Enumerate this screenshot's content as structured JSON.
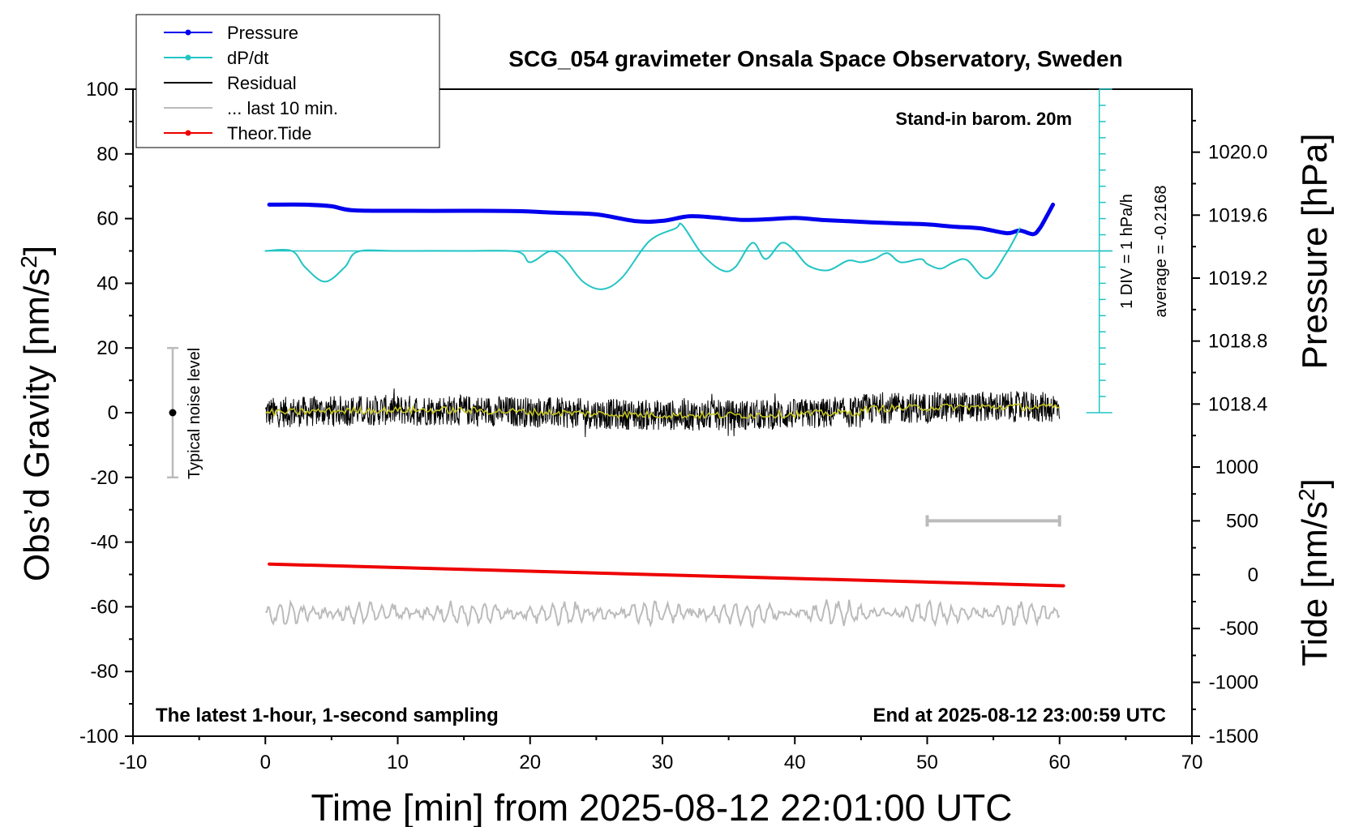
{
  "chart_data": {
    "type": "line",
    "title": "SCG_054 gravimeter Onsala Space Observatory, Sweden",
    "subtitle_right": "Stand-in barom. 20m",
    "footer_left": "The latest 1-hour, 1-second sampling",
    "footer_right": "End at 2025-08-12 23:00:59 UTC",
    "xlabel": "Time [min] from 2025-08-12 22:01:00 UTC",
    "ylabel_left_main": "Obs’d Gravity [nm/s",
    "ylabel_left_sup": "2",
    "ylabel_left_end": "]",
    "ylabel_right_pressure": "Pressure [hPa]",
    "ylabel_right_tide_main": "Tide [nm/s",
    "ylabel_right_tide_sup": "2",
    "ylabel_right_tide_end": "]",
    "xlim": [
      -10,
      70
    ],
    "ylim_left": [
      -100,
      100
    ],
    "x_ticks": [
      "-10",
      "0",
      "10",
      "20",
      "30",
      "40",
      "50",
      "60",
      "70"
    ],
    "y_ticks_left": [
      "-100",
      "-80",
      "-60",
      "-40",
      "-20",
      "0",
      "20",
      "40",
      "60",
      "80",
      "100"
    ],
    "pressure_ticks": [
      "1018.4",
      "1018.8",
      "1019.2",
      "1019.6",
      "1020.0"
    ],
    "pressure_range": [
      1018.0,
      1020.4
    ],
    "tide_ticks": [
      "-1500",
      "-1000",
      "-500",
      "0",
      "500",
      "1000"
    ],
    "tide_range": [
      -1500,
      1000
    ],
    "dpdt_scale_label": "1 DIV = 1 hPa/h",
    "dpdt_average_label": "average = -0.2168",
    "noise_label": "Typical noise level",
    "noise_range": [
      -20,
      20
    ],
    "legend": [
      {
        "label": "Pressure",
        "color": "#0000ee",
        "marker": true
      },
      {
        "label": "dP/dt",
        "color": "#22c4c4",
        "marker": true
      },
      {
        "label": "Residual",
        "color": "#000000",
        "marker": false
      },
      {
        "label": "... last 10 min.",
        "color": "#bbbbbb",
        "marker": false
      },
      {
        "label": "Theor.Tide",
        "color": "#ee0000",
        "marker": true
      }
    ],
    "series": [
      {
        "name": "Pressure",
        "color": "#0000ee",
        "x": [
          0.3,
          3,
          5,
          6.5,
          10,
          15,
          19,
          22,
          25,
          28,
          30,
          32,
          34,
          36,
          38,
          40,
          42,
          44,
          46,
          48,
          50,
          52,
          54,
          56,
          57,
          58,
          58.5,
          59,
          59.5
        ],
        "y": [
          64.3,
          64.3,
          63.8,
          62.6,
          62.4,
          62.4,
          62.3,
          61.8,
          61.3,
          59.2,
          59.3,
          60.7,
          60.3,
          59.6,
          59.8,
          60.2,
          59.6,
          59.2,
          58.8,
          58.5,
          58.2,
          57.5,
          57.0,
          55.5,
          56.3,
          55.2,
          57.0,
          60.5,
          64.3
        ]
      },
      {
        "name": "dP/dt",
        "color": "#22c4c4",
        "x": [
          0,
          2,
          3,
          4.5,
          6,
          7,
          10,
          15,
          19,
          20,
          21.5,
          22.5,
          24,
          25.5,
          27,
          29,
          31,
          31.5,
          33,
          34.5,
          35.5,
          36.8,
          37.8,
          39,
          40,
          41,
          42.5,
          44,
          45,
          46,
          47,
          48,
          49.5,
          50,
          51,
          52,
          53,
          54.5,
          56,
          57
        ],
        "y": [
          50,
          50,
          45,
          40.5,
          45,
          49.8,
          50,
          50,
          49.8,
          46.5,
          49.9,
          48,
          40.5,
          38.2,
          42,
          53,
          57,
          58,
          49,
          44,
          45,
          52.5,
          47.5,
          52.5,
          50,
          45.5,
          44,
          47,
          46.5,
          47.5,
          49.3,
          46.5,
          47.5,
          46,
          44.5,
          46.5,
          47.2,
          41.5,
          49.5,
          57
        ]
      },
      {
        "name": "Theor.Tide",
        "color": "#ee0000",
        "x": [
          0.3,
          60.3
        ],
        "y": [
          -46.8,
          -53.5
        ]
      }
    ],
    "dpdt_baseline": 50,
    "residual_range": [
      -8.5,
      7.5
    ],
    "last_10_min_bar": [
      50,
      60
    ]
  }
}
